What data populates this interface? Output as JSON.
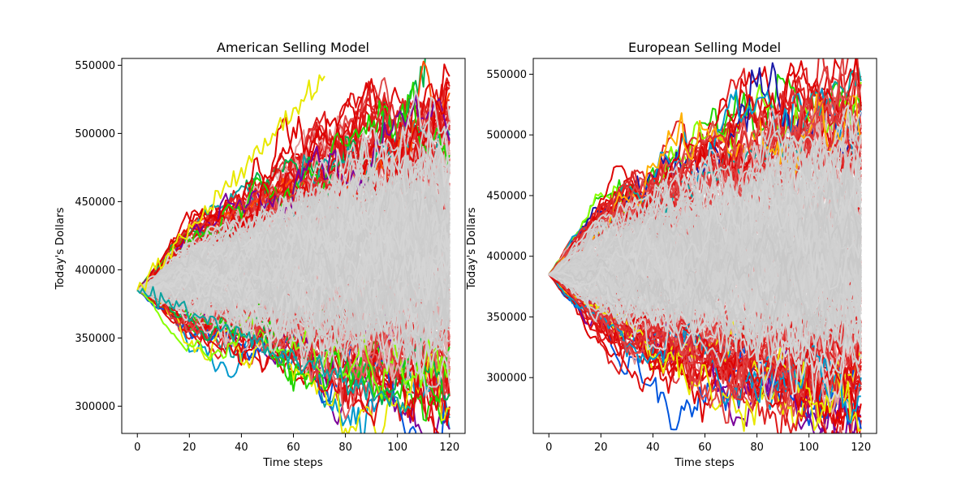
{
  "chart_data": [
    {
      "type": "line",
      "title": "American Selling Model",
      "xlabel": "Time steps",
      "ylabel": "Today's Dollars",
      "xlim": [
        -6,
        126
      ],
      "ylim": [
        280000,
        555000
      ],
      "xticks": [
        0,
        20,
        40,
        60,
        80,
        100,
        120
      ],
      "xtick_labels": [
        "0",
        "20",
        "40",
        "60",
        "80",
        "100",
        "120"
      ],
      "yticks": [
        300000,
        350000,
        400000,
        450000,
        500000,
        550000
      ],
      "ytick_labels": [
        "300000",
        "350000",
        "400000",
        "450000",
        "500000",
        "550000"
      ],
      "n_steps": 120,
      "start_value": 385000,
      "envelope_upper": [
        [
          0,
          385000
        ],
        [
          20,
          430000
        ],
        [
          40,
          452000
        ],
        [
          60,
          478000
        ],
        [
          80,
          496000
        ],
        [
          100,
          514000
        ],
        [
          120,
          527000
        ]
      ],
      "envelope_lower": [
        [
          0,
          385000
        ],
        [
          20,
          358000
        ],
        [
          40,
          343000
        ],
        [
          60,
          333000
        ],
        [
          80,
          322000
        ],
        [
          100,
          312000
        ],
        [
          120,
          303000
        ]
      ],
      "early_stop_paths": [
        {
          "stop_step": 72,
          "end_value": 542000,
          "color": "#e8e800"
        },
        {
          "stop_step": 105,
          "end_value": 298000,
          "color": "#0ca3a0"
        }
      ],
      "colormap": "nipy_spectral (outer paths) over red-to-gray (inner paths)",
      "legend": "none",
      "grid": false
    },
    {
      "type": "line",
      "title": "European Selling Model",
      "xlabel": "Time steps",
      "ylabel": "Today's Dollars",
      "xlim": [
        -6,
        126
      ],
      "ylim": [
        254000,
        563000
      ],
      "xticks": [
        0,
        20,
        40,
        60,
        80,
        100,
        120
      ],
      "xtick_labels": [
        "0",
        "20",
        "40",
        "60",
        "80",
        "100",
        "120"
      ],
      "yticks": [
        300000,
        350000,
        400000,
        450000,
        500000,
        550000
      ],
      "ytick_labels": [
        "300000",
        "350000",
        "400000",
        "450000",
        "500000",
        "550000"
      ],
      "n_steps": 120,
      "start_value": 385000,
      "envelope_upper": [
        [
          0,
          385000
        ],
        [
          20,
          440000
        ],
        [
          40,
          468000
        ],
        [
          60,
          490000
        ],
        [
          80,
          512000
        ],
        [
          100,
          528000
        ],
        [
          120,
          530000
        ]
      ],
      "envelope_lower": [
        [
          0,
          385000
        ],
        [
          20,
          340000
        ],
        [
          40,
          318000
        ],
        [
          60,
          308000
        ],
        [
          80,
          298000
        ],
        [
          100,
          290000
        ],
        [
          120,
          282000
        ]
      ],
      "early_stop_paths": [],
      "colormap": "nipy_spectral (outer paths) over red-to-gray (inner paths)",
      "legend": "none",
      "grid": false
    }
  ]
}
